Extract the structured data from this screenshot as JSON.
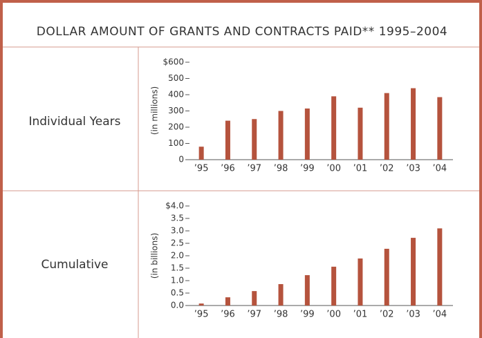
{
  "title": "DOLLAR AMOUNT OF GRANTS AND CONTRACTS PAID** 1995–2004",
  "chart_data": [
    {
      "type": "bar",
      "title": "Individual Years",
      "ylabel": "(in millions)",
      "color": "#b5533d",
      "categories": [
        "’95",
        "’96",
        "’97",
        "’98",
        "’99",
        "’00",
        "’01",
        "’02",
        "’03",
        "’04"
      ],
      "values": [
        80,
        240,
        250,
        300,
        315,
        390,
        320,
        410,
        440,
        385
      ],
      "ylim": [
        0,
        600
      ],
      "yticks": [
        0,
        100,
        200,
        300,
        400,
        500,
        {
          "value": 600,
          "label": "$600"
        }
      ]
    },
    {
      "type": "bar",
      "title": "Cumulative",
      "ylabel": "(in billions)",
      "color": "#b5533d",
      "categories": [
        "’95",
        "’96",
        "’97",
        "’98",
        "’99",
        "’00",
        "’01",
        "’02",
        "’03",
        "’04"
      ],
      "values": [
        0.08,
        0.33,
        0.58,
        0.86,
        1.22,
        1.56,
        1.89,
        2.28,
        2.72,
        3.1
      ],
      "ylim": [
        0,
        4
      ],
      "yticks": [
        {
          "value": 0,
          "label": "0.0"
        },
        0.5,
        {
          "value": 1,
          "label": "1.0"
        },
        1.5,
        {
          "value": 2,
          "label": "2.0"
        },
        2.5,
        {
          "value": 3,
          "label": "3.0"
        },
        3.5,
        {
          "value": 4,
          "label": "$4.0"
        }
      ]
    }
  ]
}
